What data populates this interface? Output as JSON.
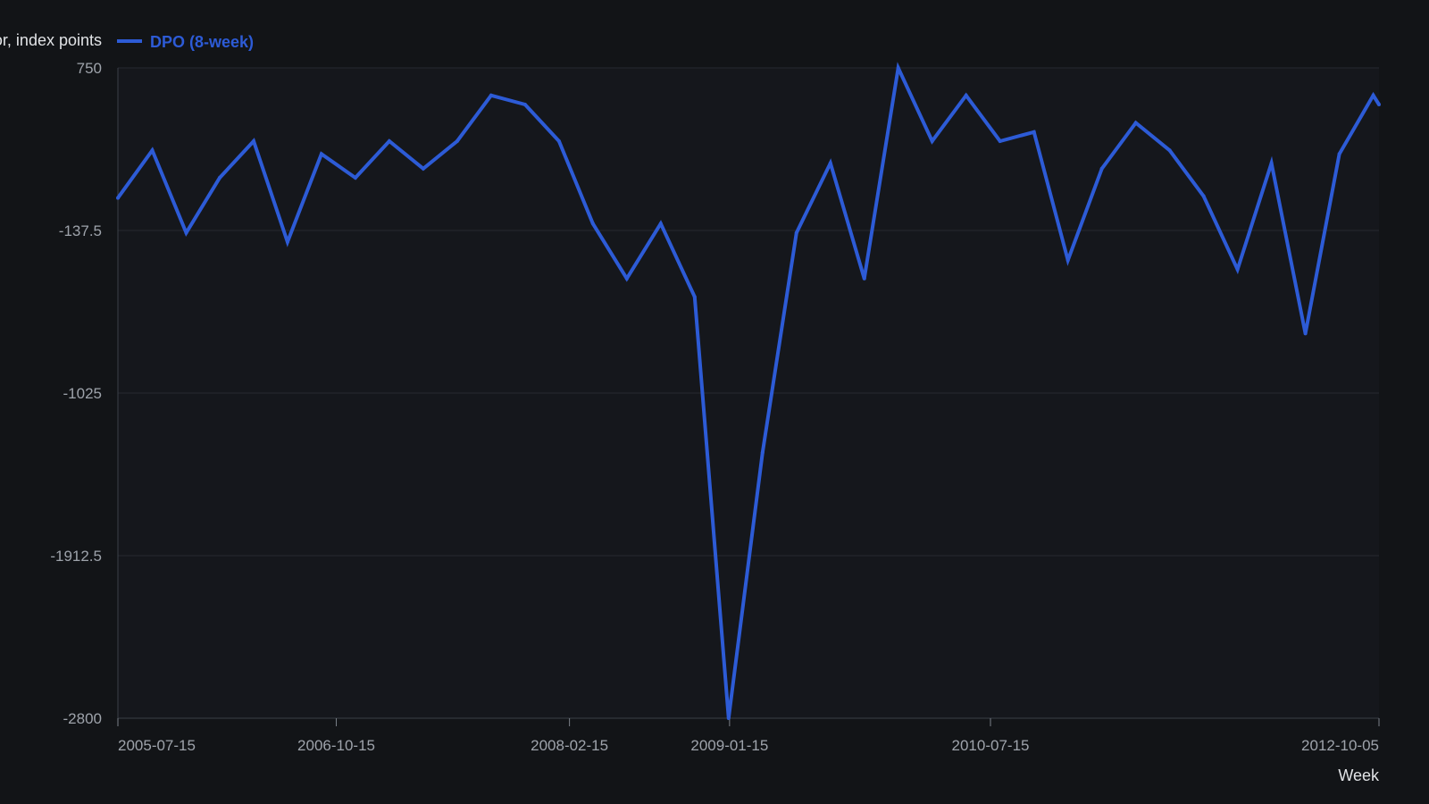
{
  "chart_data": {
    "type": "line",
    "xlabel": "Week",
    "ylabel": "Oscillator, index points",
    "ylim": [
      -2800,
      750
    ],
    "xlim": [
      "2005-07-15",
      "2012-10-05"
    ],
    "y_ticks": [
      "750",
      "-137.5",
      "-1025",
      "-1912.5",
      "-2800"
    ],
    "x_ticks": [
      "2005-07-15",
      "2006-10-15",
      "2008-02-15",
      "2009-01-15",
      "2010-07-15",
      "2012-10-05"
    ],
    "grid": true,
    "legend": "top-left",
    "series": [
      {
        "name": "DPO (8-week)",
        "color": "#2d5bd6",
        "x": [
          "2005-07-15",
          "2005-09-25",
          "2005-12-05",
          "2006-02-13",
          "2006-04-25",
          "2006-07-05",
          "2006-09-14",
          "2006-11-24",
          "2007-02-03",
          "2007-04-15",
          "2007-06-25",
          "2007-09-04",
          "2007-11-14",
          "2008-01-24",
          "2008-04-04",
          "2008-06-14",
          "2008-08-24",
          "2008-11-03",
          "2009-01-13",
          "2009-03-25",
          "2009-06-04",
          "2009-08-14",
          "2009-10-24",
          "2010-01-03",
          "2010-03-15",
          "2010-05-25",
          "2010-08-04",
          "2010-10-14",
          "2010-12-24",
          "2011-03-05",
          "2011-05-15",
          "2011-07-25",
          "2011-10-04",
          "2011-12-14",
          "2012-02-23",
          "2012-05-04",
          "2012-07-14",
          "2012-09-23",
          "2012-10-05"
        ],
        "values": [
          40,
          300,
          -150,
          150,
          350,
          -200,
          280,
          150,
          350,
          200,
          350,
          600,
          550,
          350,
          -100,
          -400,
          -100,
          -500,
          -2800,
          -1350,
          -150,
          230,
          -400,
          750,
          350,
          600,
          350,
          400,
          -300,
          200,
          450,
          300,
          50,
          -350,
          230,
          -700,
          280,
          600,
          550
        ]
      }
    ]
  }
}
